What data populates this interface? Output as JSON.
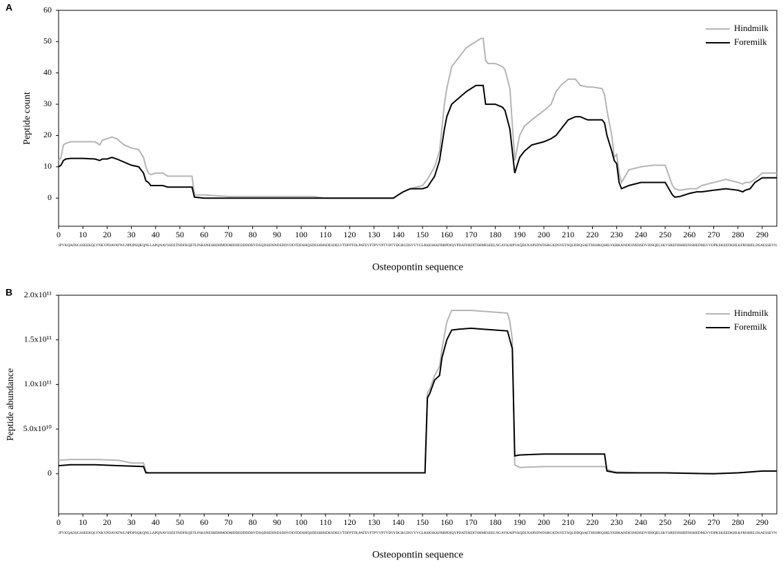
{
  "chart_data": [
    {
      "type": "line",
      "panel_label": "A",
      "y_label": "Peptide count",
      "x_label": "Osteopontin sequence",
      "sequence": "IPVKQADSGSSEEKQLYNKYPDAVATWLNPDPSQKQNLLAPQNAVSSEETNDFKQETLPSKSNESHDHMDDMDDEDDDDHVDSQDSIDSNDSDDVDDTDDSHQSDESHHSDESDELVTDFPTDLPATEVFTPVVPTVDTYDGRGDSVVYGLRSKSKKFRRPDIQYPDATDEDITSHMESEELNGAYKAIPVAQDLNAPSDWDSRGKDSYETSQLDDQSAETHSHKQSRLYKRKANDESNEHSDVIDSQELSKVSREFHSHEFHSHEDMLVVDPKSKEEDKHLKFRISHELDSAESSEVN",
      "x": [
        0,
        1,
        2,
        3,
        5,
        10,
        15,
        17,
        18,
        20,
        22,
        24,
        27,
        30,
        33,
        35,
        36,
        37,
        38,
        40,
        43,
        45,
        50,
        55,
        56,
        60,
        70,
        80,
        100,
        105,
        110,
        130,
        138,
        140,
        142,
        145,
        150,
        152,
        155,
        157,
        159,
        160,
        162,
        165,
        168,
        170,
        172,
        174,
        175,
        176,
        177,
        180,
        183,
        184,
        186,
        188,
        190,
        192,
        195,
        200,
        203,
        205,
        207,
        210,
        213,
        215,
        218,
        220,
        224,
        225,
        226,
        228,
        229,
        230,
        231,
        232,
        235,
        240,
        245,
        250,
        253,
        254,
        256,
        260,
        263,
        265,
        270,
        275,
        280,
        282,
        283,
        285,
        287,
        290,
        296
      ],
      "series": [
        {
          "name": "Hindmilk",
          "color": "#b4b4b4",
          "values": [
            12,
            13,
            17,
            17.5,
            18,
            18,
            18,
            17,
            18.5,
            19,
            19.5,
            19,
            17,
            16,
            15.5,
            13,
            10,
            8,
            7.5,
            8,
            8,
            7,
            7,
            7,
            1,
            1,
            0.5,
            0.5,
            0.5,
            0.5,
            0,
            0,
            0,
            1,
            2,
            3,
            4,
            6,
            10,
            15,
            30,
            35,
            42,
            45,
            48,
            49,
            50,
            51,
            51,
            44,
            43,
            43,
            42,
            41,
            35,
            12,
            20,
            23,
            25,
            28,
            30,
            34,
            36,
            38,
            38,
            36,
            35.5,
            35.5,
            35,
            33,
            28,
            20,
            13,
            14,
            8,
            5,
            9,
            10,
            10.5,
            10.5,
            4,
            3,
            2.5,
            3,
            3,
            4,
            5,
            6,
            5,
            4.5,
            5,
            5,
            6,
            8,
            8
          ]
        },
        {
          "name": "Foremilk",
          "color": "#000000",
          "values": [
            10,
            10.5,
            12,
            12.5,
            12.7,
            12.7,
            12.5,
            12,
            12.5,
            12.5,
            13,
            12.5,
            11.5,
            10.5,
            10,
            8,
            5.5,
            5,
            4,
            4,
            4,
            3.5,
            3.5,
            3.5,
            0.3,
            0,
            0,
            0,
            0,
            0,
            0,
            0,
            0,
            1,
            2,
            3,
            3,
            3.5,
            7,
            12,
            22,
            26,
            30,
            32,
            34,
            35,
            36,
            36,
            36,
            30,
            30,
            30,
            29,
            28,
            22,
            8,
            13,
            15,
            17,
            18,
            19,
            20,
            22,
            25,
            26,
            26,
            25,
            25,
            25,
            24,
            20,
            15,
            12,
            11,
            5,
            3,
            4,
            5,
            5,
            5,
            1,
            0.3,
            0.5,
            1.5,
            2,
            2,
            2.5,
            3,
            2.5,
            2,
            2.5,
            3,
            5,
            6.5,
            6.5
          ]
        }
      ],
      "xlim": [
        0,
        296
      ],
      "ylim": [
        -9,
        60
      ],
      "xticks": [
        0,
        10,
        20,
        30,
        40,
        50,
        60,
        70,
        80,
        90,
        100,
        110,
        120,
        130,
        140,
        150,
        160,
        170,
        180,
        190,
        200,
        210,
        220,
        230,
        240,
        250,
        260,
        270,
        280,
        290
      ],
      "yticks": [
        0,
        10,
        20,
        30,
        40,
        50,
        60
      ],
      "legend": "upper right"
    },
    {
      "type": "line",
      "panel_label": "B",
      "y_label": "Peptide abundance",
      "x_label": "Osteopontin sequence",
      "sequence": "IPVKQADSGSSEEKQLYNKYPDAVATWLNPDPSQKQNLLAPQNAVSSEETNDFKQETLPSKSNESHDHMDDMDDEDDDDHVDSQDSIDSNDSDDVDDTDDSHQSDESHHSDESDELVTDFPTDLPATEVFTPVVPTVDTYDGRGDSVVYGLRSKSKKFRRPDIQYPDATDEDITSHMESEELNGAYKAIPVAQDLNAPSDWDSRGKDSYETSQLDDQSAETHSHKQSRLYKRKANDESNEHSDVIDSQELSKVSREFHSHEFHSHEDMLVVDPKSKEEDKHLKFRISHELDSAESSEVN",
      "x": [
        0,
        5,
        15,
        25,
        30,
        35,
        36,
        37,
        40,
        100,
        151,
        152,
        153,
        155,
        157,
        158,
        160,
        162,
        165,
        170,
        175,
        180,
        185,
        186,
        187,
        188,
        190,
        200,
        210,
        220,
        225,
        226,
        228,
        230,
        240,
        250,
        270,
        280,
        285,
        290,
        296
      ],
      "series": [
        {
          "name": "Hindmilk",
          "color": "#b4b4b4",
          "values": [
            15000000000.0,
            16000000000.0,
            16000000000.0,
            15000000000.0,
            12000000000.0,
            12000000000.0,
            2000000000.0,
            1000000000.0,
            1000000000.0,
            1000000000.0,
            1000000000.0,
            90000000000.0,
            95000000000.0,
            110000000000.0,
            120000000000.0,
            140000000000.0,
            170000000000.0,
            183000000000.0,
            183000000000.0,
            183000000000.0,
            182000000000.0,
            181000000000.0,
            180000000000.0,
            170000000000.0,
            150000000000.0,
            10000000000.0,
            7000000000.0,
            8000000000.0,
            8000000000.0,
            8000000000.0,
            8000000000.0,
            5000000000.0,
            3000000000.0,
            2000000000.0,
            1000000000.0,
            1000000000.0,
            0,
            1000000000.0,
            2000000000.0,
            3000000000.0,
            3000000000.0
          ]
        },
        {
          "name": "Foremilk",
          "color": "#000000",
          "values": [
            9000000000.0,
            10000000000.0,
            10000000000.0,
            9000000000.0,
            8500000000.0,
            8000000000.0,
            1000000000.0,
            1000000000.0,
            1000000000.0,
            1000000000.0,
            1000000000.0,
            85000000000.0,
            90000000000.0,
            105000000000.0,
            110000000000.0,
            130000000000.0,
            150000000000.0,
            161000000000.0,
            162000000000.0,
            163000000000.0,
            162000000000.0,
            161000000000.0,
            160000000000.0,
            150000000000.0,
            140000000000.0,
            20000000000.0,
            21000000000.0,
            22000000000.0,
            22000000000.0,
            22000000000.0,
            22000000000.0,
            3000000000.0,
            2000000000.0,
            1000000000.0,
            1000000000.0,
            1000000000.0,
            0,
            1000000000.0,
            2000000000.0,
            3000000000.0,
            3000000000.0
          ]
        }
      ],
      "xlim": [
        0,
        296
      ],
      "ylim": [
        -45000000000.0,
        200000000000.0
      ],
      "xticks": [
        0,
        10,
        20,
        30,
        40,
        50,
        60,
        70,
        80,
        90,
        100,
        110,
        120,
        130,
        140,
        150,
        160,
        170,
        180,
        190,
        200,
        210,
        220,
        230,
        240,
        250,
        260,
        270,
        280,
        290
      ],
      "yticks": [
        0,
        {
          "value": 50000000000.0,
          "label": "5.0x10¹⁰"
        },
        {
          "value": 100000000000.0,
          "label": "1.0x10¹¹"
        },
        {
          "value": 150000000000.0,
          "label": "1.5x10¹¹"
        },
        {
          "value": 200000000000.0,
          "label": "2.0x10¹¹"
        }
      ],
      "legend": "upper right"
    }
  ]
}
